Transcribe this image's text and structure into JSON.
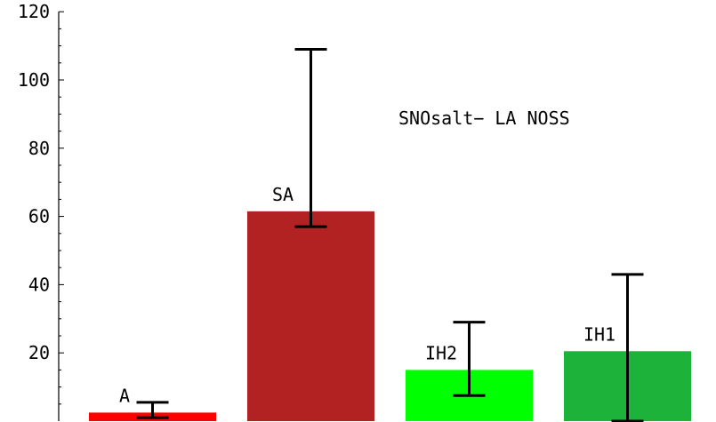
{
  "chart_data": {
    "type": "bar",
    "title": "",
    "xlabel": "",
    "ylabel": "",
    "ylim": [
      0,
      120
    ],
    "y_ticks": [
      20,
      40,
      60,
      80,
      100,
      120
    ],
    "grid": false,
    "legend": "none",
    "annotation": "SNOsalt− LA  NOSS",
    "bars": [
      {
        "label": "A",
        "value": 2.5,
        "err_low": 1,
        "err_high": 5.5,
        "color": "#ff0000"
      },
      {
        "label": "SA",
        "value": 61.5,
        "err_low": 57,
        "err_high": 109,
        "color": "#b22222"
      },
      {
        "label": "IH2",
        "value": 15,
        "err_low": 7.5,
        "err_high": 29,
        "color": "#00ff00"
      },
      {
        "label": "IH1",
        "value": 20.5,
        "err_low": 0,
        "err_high": 43,
        "color": "#1db33a"
      }
    ]
  }
}
